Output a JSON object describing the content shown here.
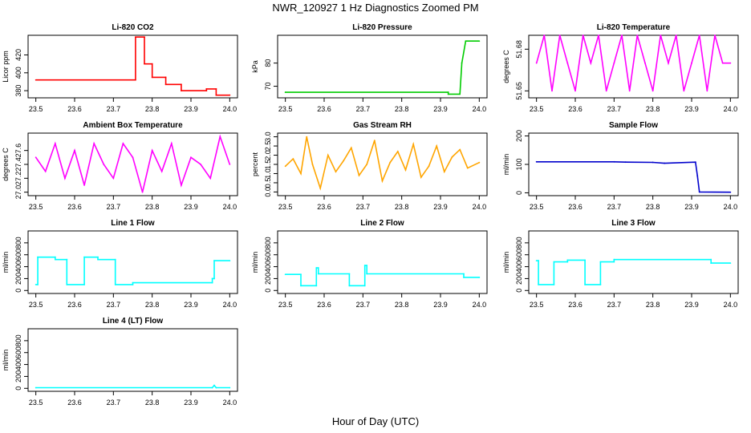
{
  "title": "NWR_120927  1 Hz Diagnostics Zoomed PM",
  "xlabel": "Hour of Day (UTC)",
  "chart_data": [
    {
      "type": "line",
      "title": "Li-820 CO2",
      "ylabel": "Licor ppm",
      "color": "#ff0000",
      "xlim": [
        23.5,
        24.0
      ],
      "ylim": [
        372,
        442
      ],
      "xticks": [
        23.5,
        23.6,
        23.7,
        23.8,
        23.9,
        24.0
      ],
      "yticks": [
        380,
        400,
        420
      ],
      "x": [
        23.5,
        23.757,
        23.757,
        23.78,
        23.78,
        23.8,
        23.8,
        23.835,
        23.835,
        23.875,
        23.875,
        23.94,
        23.94,
        23.965,
        23.965,
        24.0
      ],
      "y": [
        392,
        392,
        440,
        440,
        410,
        410,
        395,
        395,
        387,
        387,
        380,
        380,
        382,
        382,
        375,
        375
      ]
    },
    {
      "type": "line",
      "title": "Li-820 Pressure",
      "ylabel": "kPa",
      "color": "#00cc00",
      "xlim": [
        23.5,
        24.0
      ],
      "ylim": [
        65,
        92
      ],
      "xticks": [
        23.5,
        23.6,
        23.7,
        23.8,
        23.9,
        24.0
      ],
      "yticks": [
        70,
        80
      ],
      "x": [
        23.5,
        23.92,
        23.92,
        23.95,
        23.955,
        23.965,
        24.0
      ],
      "y": [
        67.4,
        67.4,
        66.6,
        66.6,
        80,
        89.5,
        89.5
      ]
    },
    {
      "type": "line",
      "title": "Li-820 Temperature",
      "ylabel": "degrees C",
      "color": "#ff00ff",
      "xlim": [
        23.5,
        24.0
      ],
      "ylim": [
        51.645,
        51.69
      ],
      "xticks": [
        23.5,
        23.6,
        23.7,
        23.8,
        23.9,
        24.0
      ],
      "yticks": [
        51.65,
        51.68
      ],
      "x": [
        23.5,
        23.52,
        23.54,
        23.56,
        23.58,
        23.6,
        23.62,
        23.64,
        23.66,
        23.68,
        23.7,
        23.72,
        23.74,
        23.76,
        23.78,
        23.8,
        23.82,
        23.84,
        23.86,
        23.88,
        23.9,
        23.92,
        23.94,
        23.96,
        23.98,
        24.0
      ],
      "y": [
        51.67,
        51.69,
        51.65,
        51.69,
        51.67,
        51.65,
        51.69,
        51.67,
        51.69,
        51.65,
        51.67,
        51.69,
        51.65,
        51.69,
        51.67,
        51.65,
        51.69,
        51.67,
        51.69,
        51.65,
        51.67,
        51.69,
        51.65,
        51.69,
        51.67,
        51.67
      ]
    },
    {
      "type": "line",
      "title": "Ambient Box Temperature",
      "ylabel": "degrees C",
      "color": "#ff00ff",
      "xlim": [
        23.5,
        24.0
      ],
      "ylim": [
        26.95,
        27.85
      ],
      "xticks": [
        23.5,
        23.6,
        23.7,
        23.8,
        23.9,
        24.0
      ],
      "yticks": [
        27.0,
        27.2,
        27.4,
        27.6
      ],
      "x": [
        23.5,
        23.525,
        23.55,
        23.575,
        23.6,
        23.625,
        23.65,
        23.675,
        23.7,
        23.725,
        23.75,
        23.775,
        23.8,
        23.825,
        23.85,
        23.875,
        23.9,
        23.925,
        23.95,
        23.975,
        24.0
      ],
      "y": [
        27.5,
        27.3,
        27.7,
        27.2,
        27.6,
        27.1,
        27.7,
        27.4,
        27.2,
        27.7,
        27.5,
        27.0,
        27.6,
        27.3,
        27.7,
        27.1,
        27.5,
        27.4,
        27.2,
        27.8,
        27.4
      ]
    },
    {
      "type": "line",
      "title": "Gas Stream RH",
      "ylabel": "percent",
      "color": "#ffa500",
      "xlim": [
        23.5,
        24.0
      ],
      "ylim": [
        -0.2,
        3.2
      ],
      "xticks": [
        23.5,
        23.6,
        23.7,
        23.8,
        23.9,
        24.0
      ],
      "yticks": [
        0.0,
        0.5,
        1.0,
        1.5,
        2.0,
        2.5,
        3.0
      ],
      "x": [
        23.5,
        23.52,
        23.54,
        23.555,
        23.57,
        23.59,
        23.61,
        23.63,
        23.65,
        23.67,
        23.69,
        23.71,
        23.73,
        23.75,
        23.77,
        23.79,
        23.81,
        23.83,
        23.85,
        23.87,
        23.89,
        23.91,
        23.93,
        23.95,
        23.97,
        24.0
      ],
      "y": [
        1.4,
        1.8,
        1.0,
        3.0,
        1.5,
        0.2,
        2.0,
        1.1,
        1.7,
        2.4,
        0.9,
        1.5,
        2.8,
        0.6,
        1.6,
        2.2,
        1.2,
        2.6,
        0.8,
        1.4,
        2.5,
        1.1,
        1.9,
        2.3,
        1.3,
        1.6
      ]
    },
    {
      "type": "line",
      "title": "Sample Flow",
      "ylabel": "ml/min",
      "color": "#0000cc",
      "xlim": [
        23.5,
        24.0
      ],
      "ylim": [
        -10,
        210
      ],
      "xticks": [
        23.5,
        23.6,
        23.7,
        23.8,
        23.9,
        24.0
      ],
      "yticks": [
        0,
        100,
        200
      ],
      "x": [
        23.5,
        23.7,
        23.73,
        23.8,
        23.83,
        23.91,
        23.915,
        23.92,
        24.0
      ],
      "y": [
        109,
        109,
        108,
        107,
        104,
        108,
        60,
        3,
        2
      ]
    },
    {
      "type": "line",
      "title": "Line 1 Flow",
      "ylabel": "ml/min",
      "color": "#00ffff",
      "xlim": [
        23.5,
        24.0
      ],
      "ylim": [
        -50,
        1000
      ],
      "xticks": [
        23.5,
        23.6,
        23.7,
        23.8,
        23.9,
        24.0
      ],
      "yticks": [
        0,
        200,
        400,
        600,
        800
      ],
      "x": [
        23.5,
        23.505,
        23.505,
        23.55,
        23.55,
        23.58,
        23.58,
        23.625,
        23.625,
        23.66,
        23.66,
        23.705,
        23.705,
        23.75,
        23.75,
        23.955,
        23.955,
        23.96,
        23.96,
        24.0
      ],
      "y": [
        100,
        100,
        560,
        560,
        520,
        520,
        100,
        100,
        560,
        560,
        520,
        520,
        100,
        100,
        130,
        130,
        200,
        200,
        500,
        500
      ]
    },
    {
      "type": "line",
      "title": "Line 2 Flow",
      "ylabel": "ml/min",
      "color": "#00ffff",
      "xlim": [
        23.5,
        24.0
      ],
      "ylim": [
        -50,
        1000
      ],
      "xticks": [
        23.5,
        23.6,
        23.7,
        23.8,
        23.9,
        24.0
      ],
      "yticks": [
        0,
        200,
        400,
        600,
        800
      ],
      "x": [
        23.5,
        23.54,
        23.54,
        23.58,
        23.58,
        23.585,
        23.585,
        23.665,
        23.665,
        23.705,
        23.705,
        23.71,
        23.71,
        23.96,
        23.96,
        24.0
      ],
      "y": [
        270,
        270,
        80,
        80,
        380,
        380,
        280,
        280,
        80,
        80,
        420,
        420,
        280,
        280,
        220,
        220
      ]
    },
    {
      "type": "line",
      "title": "Line 3 Flow",
      "ylabel": "ml/min",
      "color": "#00ffff",
      "xlim": [
        23.5,
        24.0
      ],
      "ylim": [
        -50,
        1000
      ],
      "xticks": [
        23.5,
        23.6,
        23.7,
        23.8,
        23.9,
        24.0
      ],
      "yticks": [
        0,
        200,
        400,
        600,
        800
      ],
      "x": [
        23.5,
        23.505,
        23.505,
        23.545,
        23.545,
        23.58,
        23.58,
        23.625,
        23.625,
        23.665,
        23.665,
        23.7,
        23.7,
        23.95,
        23.95,
        24.0
      ],
      "y": [
        500,
        500,
        100,
        100,
        480,
        480,
        510,
        510,
        100,
        100,
        480,
        480,
        520,
        520,
        460,
        460
      ]
    },
    {
      "type": "line",
      "title": "Line 4 (LT) Flow",
      "ylabel": "ml/min",
      "color": "#00ffff",
      "xlim": [
        23.5,
        24.0
      ],
      "ylim": [
        -50,
        1000
      ],
      "xticks": [
        23.5,
        23.6,
        23.7,
        23.8,
        23.9,
        24.0
      ],
      "yticks": [
        0,
        200,
        400,
        600,
        800
      ],
      "x": [
        23.5,
        23.955,
        23.96,
        23.965,
        24.0
      ],
      "y": [
        10,
        10,
        50,
        10,
        10
      ]
    }
  ]
}
